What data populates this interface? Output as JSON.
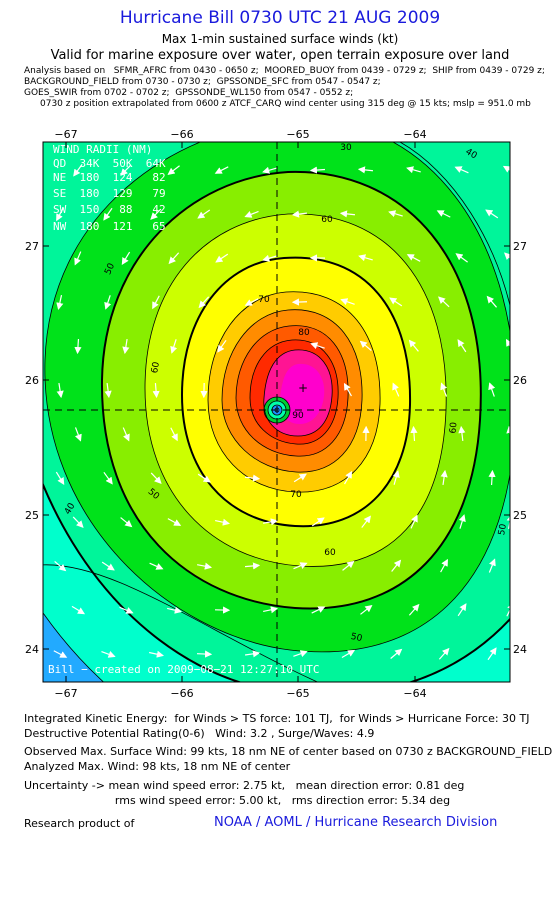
{
  "header": {
    "title": "Hurricane Bill 0730 UTC 21 AUG 2009",
    "subtitle": "Max 1-min sustained surface winds (kt)",
    "valid": "Valid for marine exposure over water, open terrain exposure over land",
    "analysis_lines": [
      "Analysis based on   SFMR_AFRC from 0430 - 0650 z;  MOORED_BUOY from 0439 - 0729 z;  SHIP from 0439 - 0729 z;",
      "BACKGROUND_FIELD from 0730 - 0730 z;  GPSSONDE_SFC from 0547 - 0547 z;",
      "GOES_SWIR from 0702 - 0702 z;  GPSSONDE_WL150 from 0547 - 0552 z;",
      "0730 z position extrapolated from 0600 z ATCF_CARQ wind center using 315 deg @ 15 kts; mslp = 951.0 mb"
    ]
  },
  "map": {
    "lon_ticks": [
      "−67",
      "−66",
      "−65",
      "−64"
    ],
    "lat_ticks": [
      "27",
      "26",
      "25",
      "24"
    ],
    "credit": "Bill − created on  2009−08−21  12:27:10  UTC",
    "wind_radii": {
      "title": "WIND RADII (NM)",
      "rows": [
        "QD  34K  50K  64K",
        "NE  180  124   82",
        "SE  180  129   79",
        "SW  150   88   42",
        "NW  180  121   65"
      ]
    },
    "contour_labels": [
      "30",
      "40",
      "40",
      "50",
      "50",
      "50",
      "50",
      "60",
      "60",
      "60",
      "60",
      "70",
      "70",
      "80",
      "90"
    ],
    "levels_kt": [
      20,
      30,
      34,
      40,
      50,
      60,
      64,
      70,
      80,
      90,
      95
    ],
    "colors": {
      "deep": "#1e90ff",
      "cyan": "#00ffff",
      "aqua": "#00ffcc",
      "mint": "#00f59a",
      "green": "#00e21a",
      "lime": "#88ee00",
      "yellowgreen": "#ccff00",
      "yellow": "#ffff00",
      "gold": "#ffcc00",
      "orange": "#ff8c00",
      "darkorange": "#ff5a00",
      "red": "#ff2a00",
      "magenta": "#ff1493",
      "pink": "#ff00cc"
    }
  },
  "footer": {
    "ike": "Integrated Kinetic Energy:  for Winds > TS force: 101 TJ,  for Winds > Hurricane Force: 30 TJ",
    "rating": "Destructive Potential Rating(0-6)   Wind: 3.2 , Surge/Waves: 4.9",
    "observed": "Observed Max. Surface Wind: 99 kts, 18 nm NE of center based on 0730 z BACKGROUND_FIELD",
    "analyzed": "Analyzed Max. Wind: 98 kts, 18 nm NE of center",
    "uncert1": "Uncertainty -> mean wind speed error: 2.75 kt,   mean direction error: 0.81 deg",
    "uncert2": "                          rms wind speed error: 5.00 kt,   rms direction error: 5.34 deg",
    "research": "Research product of",
    "org": "NOAA / AOML / Hurricane Research Division"
  }
}
